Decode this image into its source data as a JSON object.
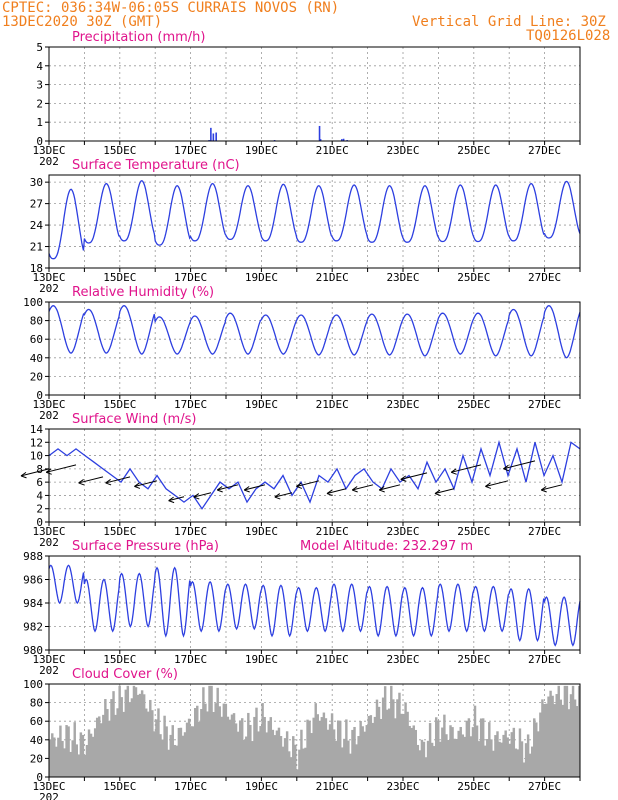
{
  "header": {
    "line1_left": "CPTEC:  036:34W-06:05S  CURRAIS NOVOS (RN)",
    "line2_left": "13DEC2020 30Z (GMT)",
    "line2_right": "Vertical Grid Line: 30Z",
    "line3_right": "TQ0126L028",
    "text_color": "#f07f1e"
  },
  "x_axis": {
    "day_start": 13,
    "day_end": 28,
    "tick_labels": [
      "13DEC",
      "15DEC",
      "17DEC",
      "19DEC",
      "21DEC",
      "23DEC",
      "25DEC",
      "27DEC"
    ],
    "tick_days": [
      13,
      15,
      17,
      19,
      21,
      23,
      25,
      27
    ],
    "underflow_label": "202"
  },
  "colors": {
    "line": "#2d3fe0",
    "title": "#e0148c",
    "cloud": "#a8a8a8",
    "grid": "#9a9a9a"
  },
  "chart_data": [
    {
      "id": "precip",
      "type": "bar",
      "title": "Precipitation (mm/h)",
      "ylim": [
        0,
        5
      ],
      "yticks": [
        0,
        1,
        2,
        3,
        4,
        5
      ],
      "series": [
        {
          "name": "precipitation",
          "x_days": [
            17.5,
            17.55,
            17.62,
            17.7,
            19.35,
            20.62,
            20.65,
            21.25,
            21.3,
            21.4
          ],
          "values": [
            0.05,
            0.7,
            0.4,
            0.45,
            0.05,
            0.8,
            0.1,
            0.1,
            0.12,
            0.05
          ]
        }
      ]
    },
    {
      "id": "temp",
      "type": "line",
      "title": "Surface Temperature (nC)",
      "ylim": [
        18,
        31
      ],
      "yticks": [
        18,
        21,
        24,
        27,
        30
      ],
      "amplitude_note": "daily cycle: max ~29-30 near 15-16Z, min ~21-22 near 06-09Z",
      "daily_max": [
        29,
        29.8,
        30.2,
        29.5,
        29.8,
        29.5,
        29.7,
        29.5,
        29.6,
        29.5,
        29.5,
        29.6,
        29.6,
        29.8,
        30.1
      ],
      "daily_min": [
        19.3,
        21.5,
        21.8,
        21.2,
        21.8,
        22.0,
        21.8,
        21.6,
        21.8,
        21.6,
        21.6,
        21.7,
        21.7,
        21.8,
        22.2
      ]
    },
    {
      "id": "rh",
      "type": "line",
      "title": "Relative Humidity (%)",
      "ylim": [
        0,
        100
      ],
      "yticks": [
        0,
        20,
        40,
        60,
        80,
        100
      ],
      "daily_max": [
        96,
        92,
        96,
        84,
        85,
        88,
        86,
        86,
        86,
        87,
        87,
        88,
        88,
        92,
        96
      ],
      "daily_min": [
        45,
        45,
        44,
        44,
        44,
        44,
        44,
        43,
        43,
        43,
        42,
        44,
        42,
        42,
        40
      ]
    },
    {
      "id": "wind",
      "type": "line",
      "title": "Surface Wind (m/s)",
      "ylim": [
        0,
        14
      ],
      "yticks": [
        0,
        2,
        4,
        6,
        8,
        10,
        12,
        14
      ],
      "speed_series": [
        10,
        11,
        10,
        11,
        10,
        9,
        8,
        7,
        6,
        8,
        6,
        5,
        7,
        5,
        4,
        3,
        4,
        2,
        4,
        6,
        5,
        6,
        3,
        5,
        6,
        5,
        7,
        4,
        6,
        3,
        7,
        6,
        8,
        5,
        7,
        8,
        6,
        5,
        8,
        6,
        7,
        5,
        9,
        6,
        8,
        5,
        10,
        6,
        11,
        7,
        12,
        7,
        11,
        6,
        12,
        7,
        10,
        6,
        12,
        11
      ],
      "arrows_note": "wind vectors from ENE, length proportional to speed"
    },
    {
      "id": "pres",
      "type": "line",
      "title": "Surface Pressure (hPa)",
      "subtitle": "Model Altitude: 232.297 m",
      "ylim": [
        980,
        988
      ],
      "yticks": [
        980,
        982,
        984,
        986,
        988
      ],
      "daily_max": [
        987.2,
        986,
        986.5,
        987,
        985.8,
        985.6,
        985.5,
        985.3,
        985.6,
        985.4,
        985.3,
        985.6,
        985.4,
        985.2,
        984.5
      ],
      "daily_min": [
        984,
        981.6,
        982,
        981.2,
        981.6,
        981.8,
        981.2,
        981.6,
        981.6,
        981.2,
        981.2,
        981.6,
        981.6,
        980.8,
        980.4
      ]
    },
    {
      "id": "cloud",
      "type": "bar",
      "title": "Cloud Cover (%)",
      "ylim": [
        0,
        100
      ],
      "yticks": [
        0,
        20,
        40,
        60,
        80,
        100
      ],
      "daily_values": [
        40,
        45,
        35,
        70,
        85,
        95,
        60,
        40,
        60,
        90,
        70,
        50,
        65,
        45,
        25,
        70,
        55,
        40,
        60,
        85,
        75,
        30,
        55,
        45,
        60,
        40,
        45,
        30,
        85,
        90
      ]
    }
  ]
}
